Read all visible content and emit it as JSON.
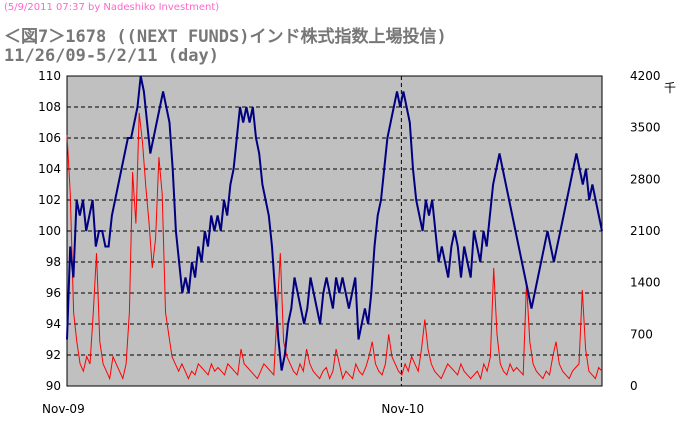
{
  "watermark": "(5/9/2011 07:37 by Nadeshiko Investment)",
  "chart_data": {
    "type": "line",
    "title_line1": "＜図7＞1678 ((NEXT FUNDS)インド株式指数上場投信)",
    "title_line2": "11/26/09-5/2/11 (day)",
    "unit_right": "千",
    "x_tick_labels": [
      "Nov-09",
      "Nov-10"
    ],
    "y_left": {
      "min": 90,
      "max": 110,
      "ticks": [
        "110",
        "108",
        "106",
        "104",
        "102",
        "100",
        "98",
        "96",
        "94",
        "92",
        "90"
      ]
    },
    "y_right": {
      "min": 0,
      "max": 4200,
      "ticks": [
        "4200",
        "3500",
        "2800",
        "2100",
        "1400",
        "700",
        "0"
      ]
    },
    "grid": true,
    "plot_background": "#c0c0c0",
    "series": [
      {
        "axis": "left",
        "color": "#000080",
        "values": [
          93,
          99,
          97,
          102,
          101,
          102,
          100,
          101,
          102,
          99,
          100,
          100,
          99,
          99,
          101,
          102,
          103,
          104,
          105,
          106,
          106,
          107,
          108,
          110,
          109,
          107,
          105,
          106,
          107,
          108,
          109,
          108,
          107,
          104,
          100,
          98,
          96,
          97,
          96,
          98,
          97,
          99,
          98,
          100,
          99,
          101,
          100,
          101,
          100,
          102,
          101,
          103,
          104,
          106,
          108,
          107,
          108,
          107,
          108,
          106,
          105,
          103,
          102,
          101,
          99,
          96,
          93,
          91,
          92,
          94,
          95,
          97,
          96,
          95,
          94,
          95,
          97,
          96,
          95,
          94,
          96,
          97,
          96,
          95,
          97,
          96,
          97,
          96,
          95,
          96,
          97,
          93,
          94,
          95,
          94,
          96,
          99,
          101,
          102,
          104,
          106,
          107,
          108,
          109,
          108,
          109,
          108,
          107,
          104,
          102,
          101,
          100,
          102,
          101,
          102,
          100,
          98,
          99,
          98,
          97,
          99,
          100,
          99,
          97,
          99,
          98,
          97,
          100,
          99,
          98,
          100,
          99,
          101,
          103,
          104,
          105,
          104,
          103,
          102,
          101,
          100,
          99,
          98,
          97,
          96,
          95,
          96,
          97,
          98,
          99,
          100,
          99,
          98,
          99,
          100,
          101,
          102,
          103,
          104,
          105,
          104,
          103,
          104,
          102,
          103,
          102,
          101,
          100
        ]
      },
      {
        "axis": "right",
        "color": "#ff0000",
        "values": [
          3400,
          2600,
          1000,
          600,
          300,
          200,
          400,
          300,
          1000,
          1800,
          600,
          300,
          200,
          100,
          400,
          300,
          200,
          100,
          300,
          1000,
          2900,
          2200,
          3700,
          3300,
          2700,
          2200,
          1600,
          2000,
          3100,
          2600,
          1000,
          700,
          400,
          300,
          200,
          300,
          200,
          100,
          200,
          150,
          300,
          250,
          200,
          150,
          300,
          200,
          250,
          200,
          150,
          300,
          250,
          200,
          150,
          500,
          300,
          250,
          200,
          150,
          100,
          200,
          300,
          250,
          200,
          150,
          1000,
          1800,
          600,
          400,
          300,
          200,
          150,
          300,
          200,
          500,
          300,
          200,
          150,
          100,
          200,
          250,
          100,
          200,
          500,
          300,
          100,
          200,
          150,
          100,
          300,
          200,
          150,
          250,
          400,
          600,
          300,
          200,
          150,
          300,
          700,
          400,
          300,
          200,
          150,
          300,
          200,
          400,
          300,
          200,
          500,
          900,
          500,
          300,
          200,
          150,
          100,
          200,
          300,
          250,
          200,
          150,
          300,
          200,
          150,
          100,
          150,
          200,
          100,
          300,
          200,
          400,
          1600,
          700,
          300,
          200,
          150,
          300,
          200,
          250,
          200,
          150,
          1400,
          600,
          300,
          200,
          150,
          100,
          200,
          150,
          400,
          600,
          300,
          200,
          150,
          100,
          200,
          250,
          300,
          1300,
          500,
          200,
          150,
          100,
          250,
          200
        ]
      }
    ]
  }
}
